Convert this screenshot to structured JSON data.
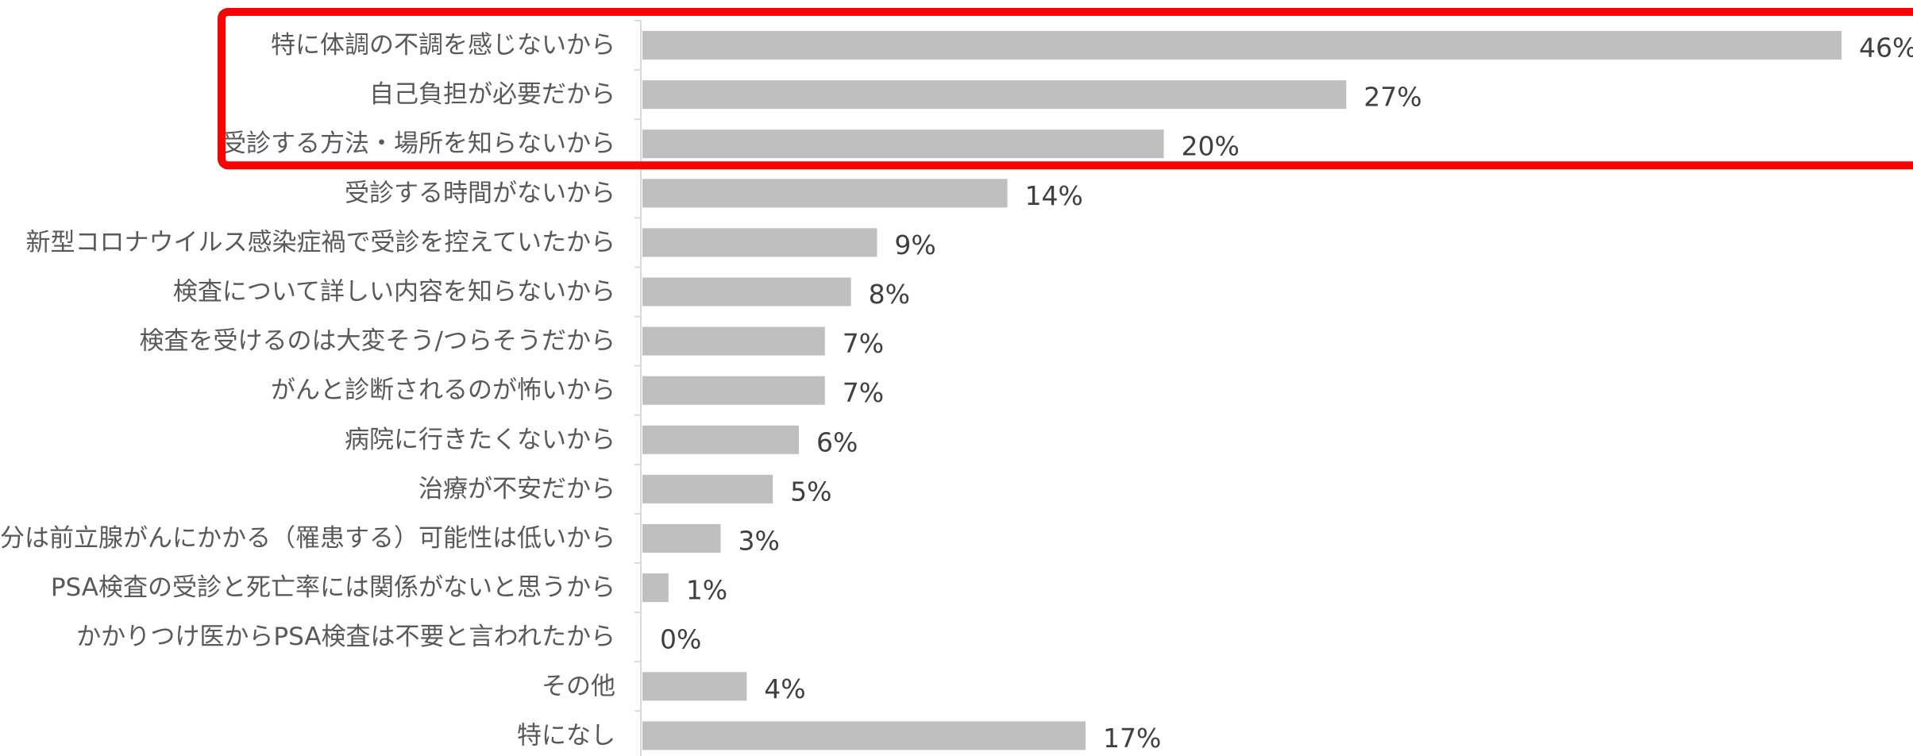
{
  "chart_data": {
    "type": "bar",
    "orientation": "horizontal",
    "categories": [
      "特に体調の不調を感じないから",
      "自己負担が必要だから",
      "受診する方法・場所を知らないから",
      "受診する時間がないから",
      "新型コロナウイルス感染症禍で受診を控えていたから",
      "検査について詳しい内容を知らないから",
      "検査を受けるのは大変そう/つらそうだから",
      "がんと診断されるのが怖いから",
      "病院に行きたくないから",
      "治療が不安だから",
      "自分は前立腺がんにかかる（罹患する）可能性は低いから",
      "PSA検査の受診と死亡率には関係がないと思うから",
      "かかりつけ医からPSA検査は不要と言われたから",
      "その他",
      "特になし"
    ],
    "values": [
      46,
      27,
      20,
      14,
      9,
      8,
      7,
      7,
      6,
      5,
      3,
      1,
      0,
      4,
      17
    ],
    "value_labels": [
      "46%",
      "27%",
      "20%",
      "14%",
      "9%",
      "8%",
      "7%",
      "7%",
      "6%",
      "5%",
      "3%",
      "1%",
      "0%",
      "4%",
      "17%"
    ],
    "unit": "%",
    "xlim": [
      0,
      46
    ],
    "grid": false,
    "legend": "none",
    "bar_color": "#bfbfbf",
    "axis_color": "#d9d9d9",
    "highlight": {
      "categories_from": 0,
      "categories_to": 2,
      "color": "#ff0000"
    }
  }
}
